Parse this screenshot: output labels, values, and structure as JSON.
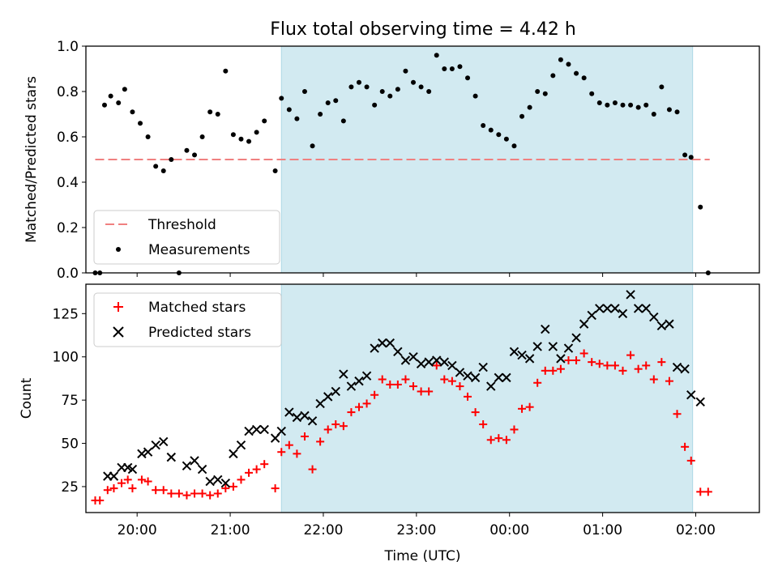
{
  "title": "Flux total observing time = 4.42 h",
  "colors": {
    "shade": "#add8e6",
    "threshold": "#f08080",
    "measurement": "#000000",
    "matched": "#ff0000",
    "predicted": "#000000"
  },
  "chart_data": [
    {
      "type": "scatter",
      "panel": "top",
      "ylabel": "Matched/Predicted stars",
      "xlabel": "",
      "xlim": [
        "19:27",
        "02:41"
      ],
      "ylim": [
        0,
        1.0
      ],
      "y_ticks": [
        0.0,
        0.2,
        0.4,
        0.6,
        0.8,
        1.0
      ],
      "y_tick_labels": [
        "0.0",
        "0.2",
        "0.4",
        "0.6",
        "0.8",
        "1.0"
      ],
      "shaded_span": [
        "21:33",
        "01:58"
      ],
      "legend": {
        "position": "lower-left",
        "entries": [
          {
            "label": "Threshold"
          },
          {
            "label": "Measurements"
          }
        ]
      },
      "threshold": {
        "name": "Threshold",
        "value": 0.5,
        "x_range": [
          "19:33",
          "02:09"
        ]
      },
      "series": [
        {
          "name": "Measurements",
          "marker": "dot",
          "points": [
            [
              "19:33",
              0.0
            ],
            [
              "19:36",
              0.0
            ],
            [
              "19:39",
              0.74
            ],
            [
              "19:43",
              0.78
            ],
            [
              "19:48",
              0.75
            ],
            [
              "19:52",
              0.81
            ],
            [
              "19:57",
              0.71
            ],
            [
              "20:02",
              0.66
            ],
            [
              "20:07",
              0.6
            ],
            [
              "20:12",
              0.47
            ],
            [
              "20:17",
              0.45
            ],
            [
              "20:22",
              0.5
            ],
            [
              "20:27",
              0.0
            ],
            [
              "20:32",
              0.54
            ],
            [
              "20:37",
              0.52
            ],
            [
              "20:42",
              0.6
            ],
            [
              "20:47",
              0.71
            ],
            [
              "20:52",
              0.7
            ],
            [
              "20:57",
              0.89
            ],
            [
              "21:02",
              0.61
            ],
            [
              "21:07",
              0.59
            ],
            [
              "21:12",
              0.58
            ],
            [
              "21:17",
              0.62
            ],
            [
              "21:22",
              0.67
            ],
            [
              "21:29",
              0.45
            ],
            [
              "21:33",
              0.77
            ],
            [
              "21:38",
              0.72
            ],
            [
              "21:43",
              0.68
            ],
            [
              "21:48",
              0.8
            ],
            [
              "21:53",
              0.56
            ],
            [
              "21:58",
              0.7
            ],
            [
              "22:03",
              0.75
            ],
            [
              "22:08",
              0.76
            ],
            [
              "22:13",
              0.67
            ],
            [
              "22:18",
              0.82
            ],
            [
              "22:23",
              0.84
            ],
            [
              "22:28",
              0.82
            ],
            [
              "22:33",
              0.74
            ],
            [
              "22:38",
              0.8
            ],
            [
              "22:43",
              0.78
            ],
            [
              "22:48",
              0.81
            ],
            [
              "22:53",
              0.89
            ],
            [
              "22:58",
              0.84
            ],
            [
              "23:03",
              0.82
            ],
            [
              "23:08",
              0.8
            ],
            [
              "23:13",
              0.96
            ],
            [
              "23:18",
              0.9
            ],
            [
              "23:23",
              0.9
            ],
            [
              "23:28",
              0.91
            ],
            [
              "23:33",
              0.86
            ],
            [
              "23:38",
              0.78
            ],
            [
              "23:43",
              0.65
            ],
            [
              "23:48",
              0.63
            ],
            [
              "23:53",
              0.61
            ],
            [
              "23:58",
              0.59
            ],
            [
              "00:03",
              0.56
            ],
            [
              "00:08",
              0.69
            ],
            [
              "00:13",
              0.73
            ],
            [
              "00:18",
              0.8
            ],
            [
              "00:23",
              0.79
            ],
            [
              "00:28",
              0.87
            ],
            [
              "00:33",
              0.94
            ],
            [
              "00:38",
              0.92
            ],
            [
              "00:43",
              0.88
            ],
            [
              "00:48",
              0.86
            ],
            [
              "00:53",
              0.79
            ],
            [
              "00:58",
              0.75
            ],
            [
              "01:03",
              0.74
            ],
            [
              "01:08",
              0.75
            ],
            [
              "01:13",
              0.74
            ],
            [
              "01:18",
              0.74
            ],
            [
              "01:23",
              0.73
            ],
            [
              "01:28",
              0.74
            ],
            [
              "01:33",
              0.7
            ],
            [
              "01:38",
              0.82
            ],
            [
              "01:43",
              0.72
            ],
            [
              "01:48",
              0.71
            ],
            [
              "01:53",
              0.52
            ],
            [
              "01:57",
              0.51
            ],
            [
              "02:03",
              0.29
            ],
            [
              "02:08",
              0.0
            ]
          ]
        }
      ]
    },
    {
      "type": "scatter",
      "panel": "bottom",
      "ylabel": "Count",
      "xlabel": "Time (UTC)",
      "xlim": [
        "19:27",
        "02:41"
      ],
      "ylim": [
        10,
        142
      ],
      "x_ticks": [
        "20:00",
        "21:00",
        "22:00",
        "23:00",
        "00:00",
        "01:00",
        "02:00"
      ],
      "y_ticks": [
        25,
        50,
        75,
        100,
        125
      ],
      "shaded_span": [
        "21:33",
        "01:58"
      ],
      "legend": {
        "position": "upper-left",
        "entries": [
          {
            "label": "Matched stars"
          },
          {
            "label": "Predicted stars"
          }
        ]
      },
      "series": [
        {
          "name": "Matched stars",
          "marker": "plus",
          "points": [
            [
              "19:33",
              17
            ],
            [
              "19:36",
              17
            ],
            [
              "19:41",
              23
            ],
            [
              "19:45",
              24
            ],
            [
              "19:50",
              27
            ],
            [
              "19:54",
              29
            ],
            [
              "19:57",
              24
            ],
            [
              "20:03",
              29
            ],
            [
              "20:07",
              28
            ],
            [
              "20:12",
              23
            ],
            [
              "20:17",
              23
            ],
            [
              "20:22",
              21
            ],
            [
              "20:27",
              21
            ],
            [
              "20:32",
              20
            ],
            [
              "20:37",
              21
            ],
            [
              "20:42",
              21
            ],
            [
              "20:47",
              20
            ],
            [
              "20:52",
              21
            ],
            [
              "20:57",
              24
            ],
            [
              "21:02",
              25
            ],
            [
              "21:07",
              29
            ],
            [
              "21:12",
              33
            ],
            [
              "21:17",
              35
            ],
            [
              "21:22",
              38
            ],
            [
              "21:29",
              24
            ],
            [
              "21:33",
              45
            ],
            [
              "21:38",
              49
            ],
            [
              "21:43",
              44
            ],
            [
              "21:48",
              54
            ],
            [
              "21:53",
              35
            ],
            [
              "21:58",
              51
            ],
            [
              "22:03",
              58
            ],
            [
              "22:08",
              61
            ],
            [
              "22:13",
              60
            ],
            [
              "22:18",
              68
            ],
            [
              "22:23",
              71
            ],
            [
              "22:28",
              73
            ],
            [
              "22:33",
              78
            ],
            [
              "22:38",
              87
            ],
            [
              "22:43",
              84
            ],
            [
              "22:48",
              84
            ],
            [
              "22:53",
              87
            ],
            [
              "22:58",
              83
            ],
            [
              "23:03",
              80
            ],
            [
              "23:08",
              80
            ],
            [
              "23:13",
              95
            ],
            [
              "23:18",
              87
            ],
            [
              "23:23",
              86
            ],
            [
              "23:28",
              83
            ],
            [
              "23:33",
              77
            ],
            [
              "23:38",
              68
            ],
            [
              "23:43",
              61
            ],
            [
              "23:48",
              52
            ],
            [
              "23:53",
              53
            ],
            [
              "23:58",
              52
            ],
            [
              "00:03",
              58
            ],
            [
              "00:08",
              70
            ],
            [
              "00:13",
              71
            ],
            [
              "00:18",
              85
            ],
            [
              "00:23",
              92
            ],
            [
              "00:28",
              92
            ],
            [
              "00:33",
              93
            ],
            [
              "00:38",
              98
            ],
            [
              "00:43",
              98
            ],
            [
              "00:48",
              102
            ],
            [
              "00:53",
              97
            ],
            [
              "00:58",
              96
            ],
            [
              "01:03",
              95
            ],
            [
              "01:08",
              95
            ],
            [
              "01:13",
              92
            ],
            [
              "01:18",
              101
            ],
            [
              "01:23",
              93
            ],
            [
              "01:28",
              95
            ],
            [
              "01:33",
              87
            ],
            [
              "01:38",
              97
            ],
            [
              "01:43",
              86
            ],
            [
              "01:48",
              67
            ],
            [
              "01:53",
              48
            ],
            [
              "01:57",
              40
            ],
            [
              "02:03",
              22
            ],
            [
              "02:08",
              22
            ]
          ]
        },
        {
          "name": "Predicted stars",
          "marker": "x",
          "points": [
            [
              "19:41",
              31
            ],
            [
              "19:45",
              31
            ],
            [
              "19:50",
              36
            ],
            [
              "19:54",
              36
            ],
            [
              "19:57",
              35
            ],
            [
              "20:03",
              44
            ],
            [
              "20:07",
              45
            ],
            [
              "20:12",
              49
            ],
            [
              "20:17",
              51
            ],
            [
              "20:22",
              42
            ],
            [
              "20:32",
              37
            ],
            [
              "20:37",
              40
            ],
            [
              "20:42",
              35
            ],
            [
              "20:47",
              28
            ],
            [
              "20:52",
              29
            ],
            [
              "20:57",
              27
            ],
            [
              "21:02",
              44
            ],
            [
              "21:07",
              49
            ],
            [
              "21:12",
              57
            ],
            [
              "21:17",
              58
            ],
            [
              "21:22",
              58
            ],
            [
              "21:29",
              53
            ],
            [
              "21:33",
              57
            ],
            [
              "21:38",
              68
            ],
            [
              "21:43",
              65
            ],
            [
              "21:48",
              66
            ],
            [
              "21:53",
              63
            ],
            [
              "21:58",
              73
            ],
            [
              "22:03",
              77
            ],
            [
              "22:08",
              80
            ],
            [
              "22:13",
              90
            ],
            [
              "22:18",
              83
            ],
            [
              "22:23",
              86
            ],
            [
              "22:28",
              89
            ],
            [
              "22:33",
              105
            ],
            [
              "22:38",
              108
            ],
            [
              "22:43",
              108
            ],
            [
              "22:48",
              103
            ],
            [
              "22:53",
              98
            ],
            [
              "22:58",
              100
            ],
            [
              "23:03",
              96
            ],
            [
              "23:08",
              97
            ],
            [
              "23:13",
              98
            ],
            [
              "23:18",
              97
            ],
            [
              "23:23",
              95
            ],
            [
              "23:28",
              91
            ],
            [
              "23:33",
              89
            ],
            [
              "23:38",
              88
            ],
            [
              "23:43",
              94
            ],
            [
              "23:48",
              83
            ],
            [
              "23:53",
              88
            ],
            [
              "23:58",
              88
            ],
            [
              "00:03",
              103
            ],
            [
              "00:08",
              101
            ],
            [
              "00:13",
              99
            ],
            [
              "00:18",
              106
            ],
            [
              "00:23",
              116
            ],
            [
              "00:28",
              106
            ],
            [
              "00:33",
              99
            ],
            [
              "00:38",
              105
            ],
            [
              "00:43",
              111
            ],
            [
              "00:48",
              119
            ],
            [
              "00:53",
              124
            ],
            [
              "00:58",
              128
            ],
            [
              "01:03",
              128
            ],
            [
              "01:08",
              128
            ],
            [
              "01:13",
              125
            ],
            [
              "01:18",
              136
            ],
            [
              "01:23",
              128
            ],
            [
              "01:28",
              128
            ],
            [
              "01:33",
              123
            ],
            [
              "01:38",
              118
            ],
            [
              "01:43",
              119
            ],
            [
              "01:48",
              94
            ],
            [
              "01:53",
              93
            ],
            [
              "01:57",
              78
            ],
            [
              "02:03",
              74
            ]
          ]
        }
      ]
    }
  ]
}
